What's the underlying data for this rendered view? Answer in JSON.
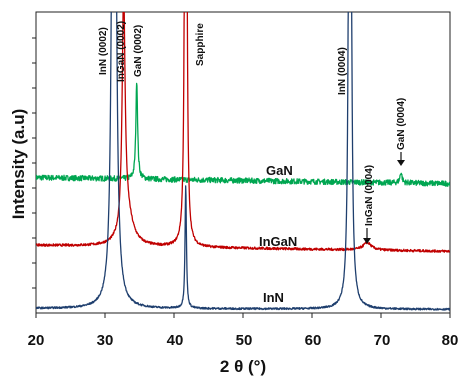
{
  "chart_data": {
    "type": "line",
    "xlabel": "2 θ (°)",
    "ylabel": "Intensity (a.u)",
    "xlim": [
      20,
      80
    ],
    "ylim": [
      0,
      100
    ],
    "x_ticks": [
      "20",
      "30",
      "40",
      "50",
      "60",
      "70",
      "80"
    ],
    "grid": false,
    "series": [
      {
        "name": "GaN",
        "color": "#00a651",
        "baseline": 45,
        "baseline_end": 43,
        "noise": 0.9,
        "peaks": [
          {
            "x": 34.6,
            "height": 33,
            "width": 0.15
          },
          {
            "x": 72.9,
            "height": 3.5,
            "width": 0.18
          }
        ]
      },
      {
        "name": "InGaN",
        "color": "#c00000",
        "baseline": 22.5,
        "baseline_end": 20.5,
        "noise": 0.4,
        "peaks": [
          {
            "x": 32.7,
            "height": 78,
            "width": 0.25
          },
          {
            "x": 33.2,
            "height": 10,
            "width": 1.0
          },
          {
            "x": 41.7,
            "height": 500,
            "width": 0.1
          },
          {
            "x": 68.0,
            "height": 2.5,
            "width": 0.7
          }
        ]
      },
      {
        "name": "InN",
        "color": "#1f3f6e",
        "baseline": 1.5,
        "baseline_end": 1.2,
        "noise": 0.3,
        "peaks": [
          {
            "x": 31.3,
            "height": 500,
            "width": 0.2
          },
          {
            "x": 41.7,
            "height": 41,
            "width": 0.12
          },
          {
            "x": 65.5,
            "height": 500,
            "width": 0.13
          }
        ]
      }
    ],
    "annotations": {
      "peaks": [
        {
          "text": "InN (0002)",
          "x": 31.0
        },
        {
          "text": "InGaN (0002)",
          "x": 33.0
        },
        {
          "text": "GaN (0002)",
          "x": 35.0
        },
        {
          "text": "Sapphire",
          "x": 43.6
        },
        {
          "text": "InN (0004)",
          "x": 65.2
        },
        {
          "text": "InGaN (0004)",
          "x": 68.0
        },
        {
          "text": "GaN (0004)",
          "x": 72.9
        }
      ],
      "series_labels": [
        {
          "text": "GaN",
          "x": 67.0
        },
        {
          "text": "InGaN",
          "x": 64.5
        },
        {
          "text": "InN",
          "x": 65.5
        }
      ]
    }
  }
}
